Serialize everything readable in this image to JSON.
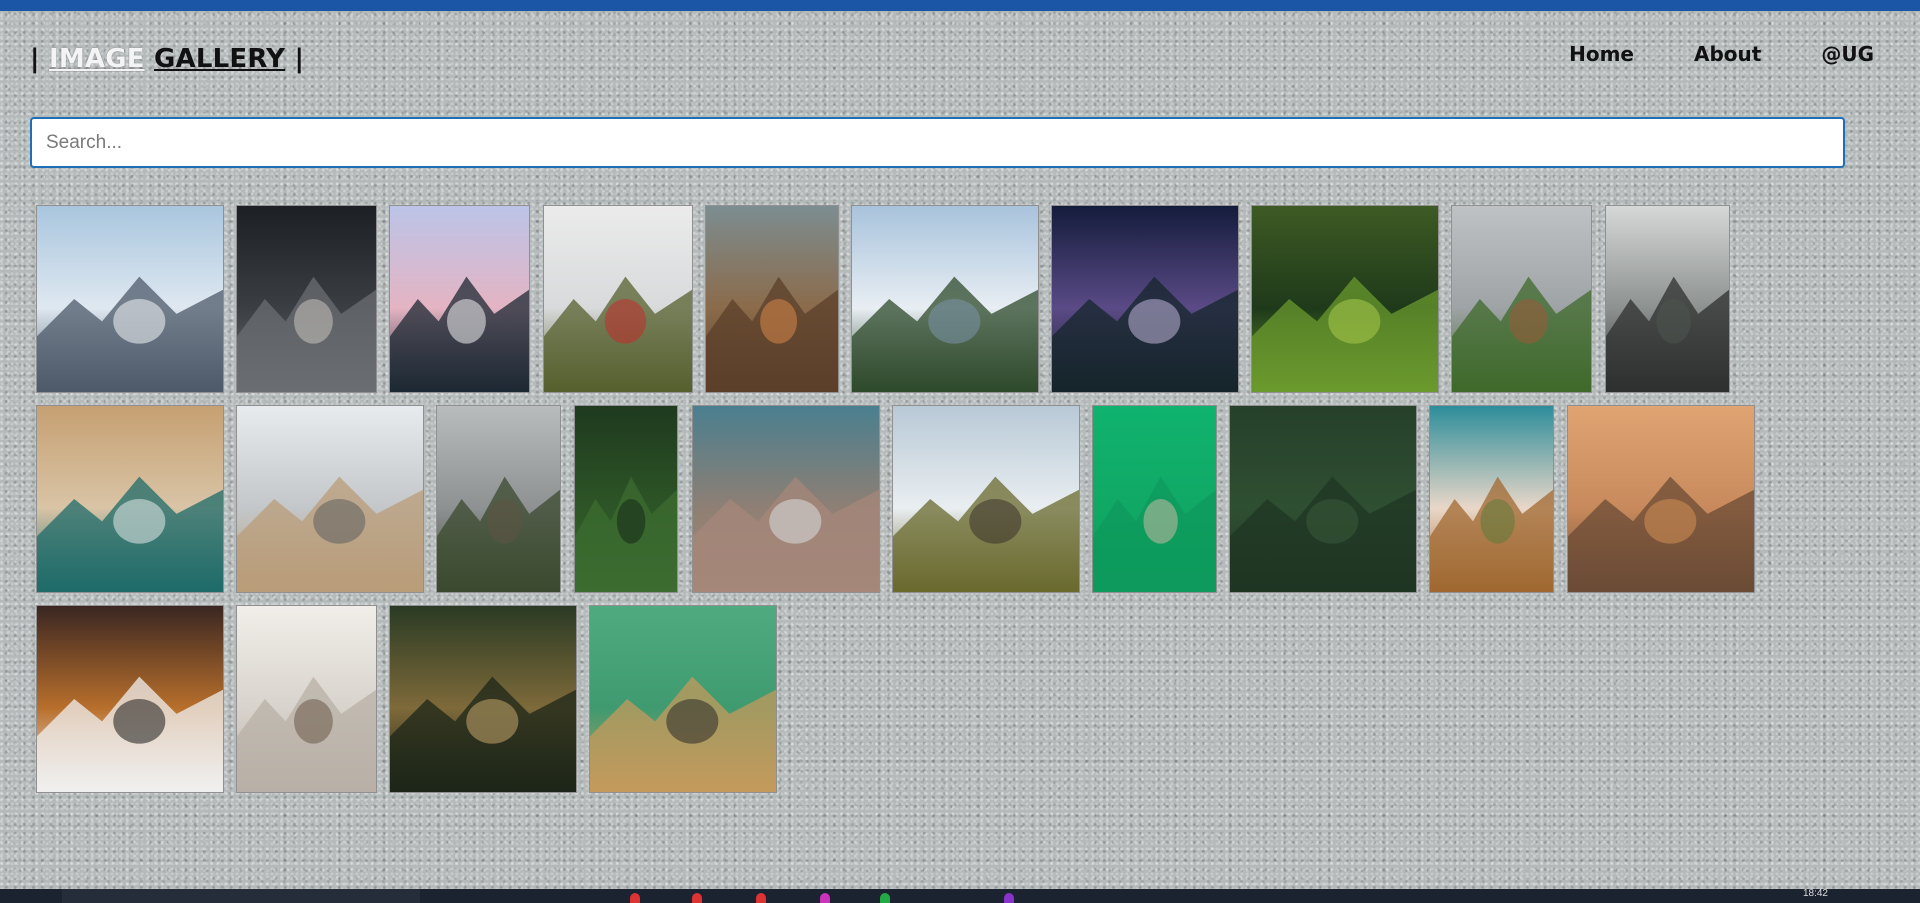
{
  "header": {
    "brand_open": "|",
    "brand_first": "IMAGE",
    "brand_second": "GALLERY",
    "brand_close": "|",
    "nav": [
      "Home",
      "About",
      "@UG"
    ]
  },
  "search": {
    "placeholder": "Search...",
    "value": ""
  },
  "gallery": {
    "images": [
      "snowy-mountain-range",
      "husky-dog",
      "pink-sky-mountain-peak",
      "red-cabin-field",
      "orange-cat-on-table",
      "mountain-valley-forest",
      "milky-way-mountains",
      "pine-forest-meadow",
      "foggy-hill-hut",
      "coastal-cliffs",
      "aerial-beach-waves",
      "sea-stack-beach",
      "old-house-fog",
      "aerial-forest-canopy",
      "aerial-coastline",
      "log-cabin-mountains",
      "french-bulldog-green",
      "dense-forest-aerial",
      "cat-peeking-door",
      "two-dogs-running",
      "dog-reading-magazine",
      "cat-on-stairs",
      "forest-path",
      "cat-in-box-green"
    ]
  },
  "taskbar": {
    "clock": "18:42"
  },
  "colors": {
    "accent": "#1a56a5",
    "search_border": "#1f6fb8"
  }
}
